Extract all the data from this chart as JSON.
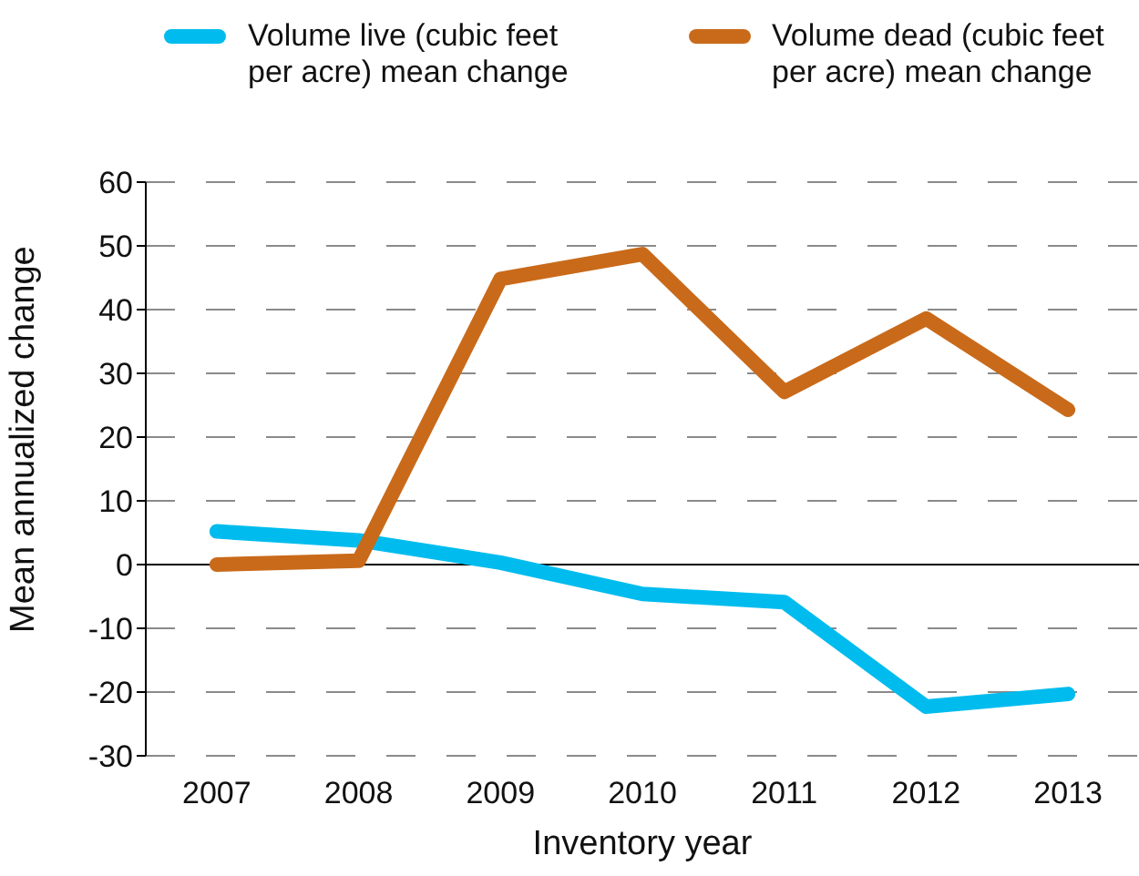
{
  "chart_data": {
    "type": "line",
    "xlabel": "Inventory year",
    "ylabel": "Mean annualized change",
    "categories": [
      "2007",
      "2008",
      "2009",
      "2010",
      "2011",
      "2012",
      "2013"
    ],
    "series": [
      {
        "name": "Volume live (cubic feet per acre) mean change",
        "color": "#00bcee",
        "values": [
          5.2,
          3.8,
          0.3,
          -4.6,
          -5.9,
          -22.3,
          -20.3
        ]
      },
      {
        "name": "Volume dead (cubic feet per acre) mean change",
        "color": "#c96a1a",
        "values": [
          0,
          0.6,
          44.8,
          48.7,
          27.1,
          38.6,
          24.3
        ]
      }
    ],
    "ylim": [
      -30,
      60
    ],
    "yticks": [
      -30,
      -20,
      -10,
      0,
      10,
      20,
      30,
      40,
      50,
      60
    ],
    "ref_lines": [
      {
        "axis": "y",
        "value": 0,
        "color": "#000000",
        "line_style": "solid"
      }
    ],
    "grid": "y",
    "legend": "top",
    "marker": "none",
    "line_style": "solid"
  }
}
